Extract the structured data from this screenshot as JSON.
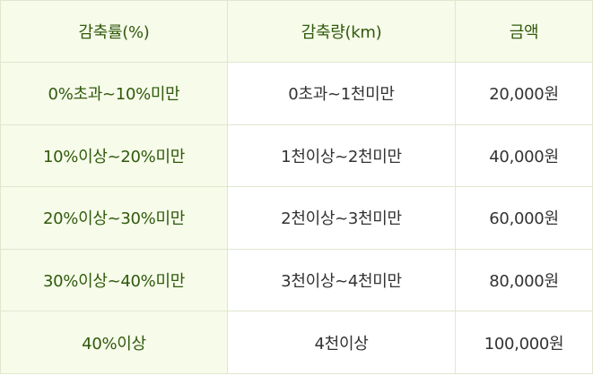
{
  "table": {
    "headers": [
      "감축률(%)",
      "감축량(km)",
      "금액"
    ],
    "rows": [
      {
        "rate": "0%초과~10%미만",
        "amount": "0초과~1천미만",
        "money": "20,000원"
      },
      {
        "rate": "10%이상~20%미만",
        "amount": "1천이상~2천미만",
        "money": "40,000원"
      },
      {
        "rate": "20%이상~30%미만",
        "amount": "2천이상~3천미만",
        "money": "60,000원"
      },
      {
        "rate": "30%이상~40%미만",
        "amount": "3천이상~4천미만",
        "money": "80,000원"
      },
      {
        "rate": "40%이상",
        "amount": "4천이상",
        "money": "100,000원"
      }
    ]
  },
  "colors": {
    "header_bg": "#f7fbea",
    "header_text": "#2f5a0c",
    "border": "#dfe7cf",
    "body_text": "#333333"
  }
}
